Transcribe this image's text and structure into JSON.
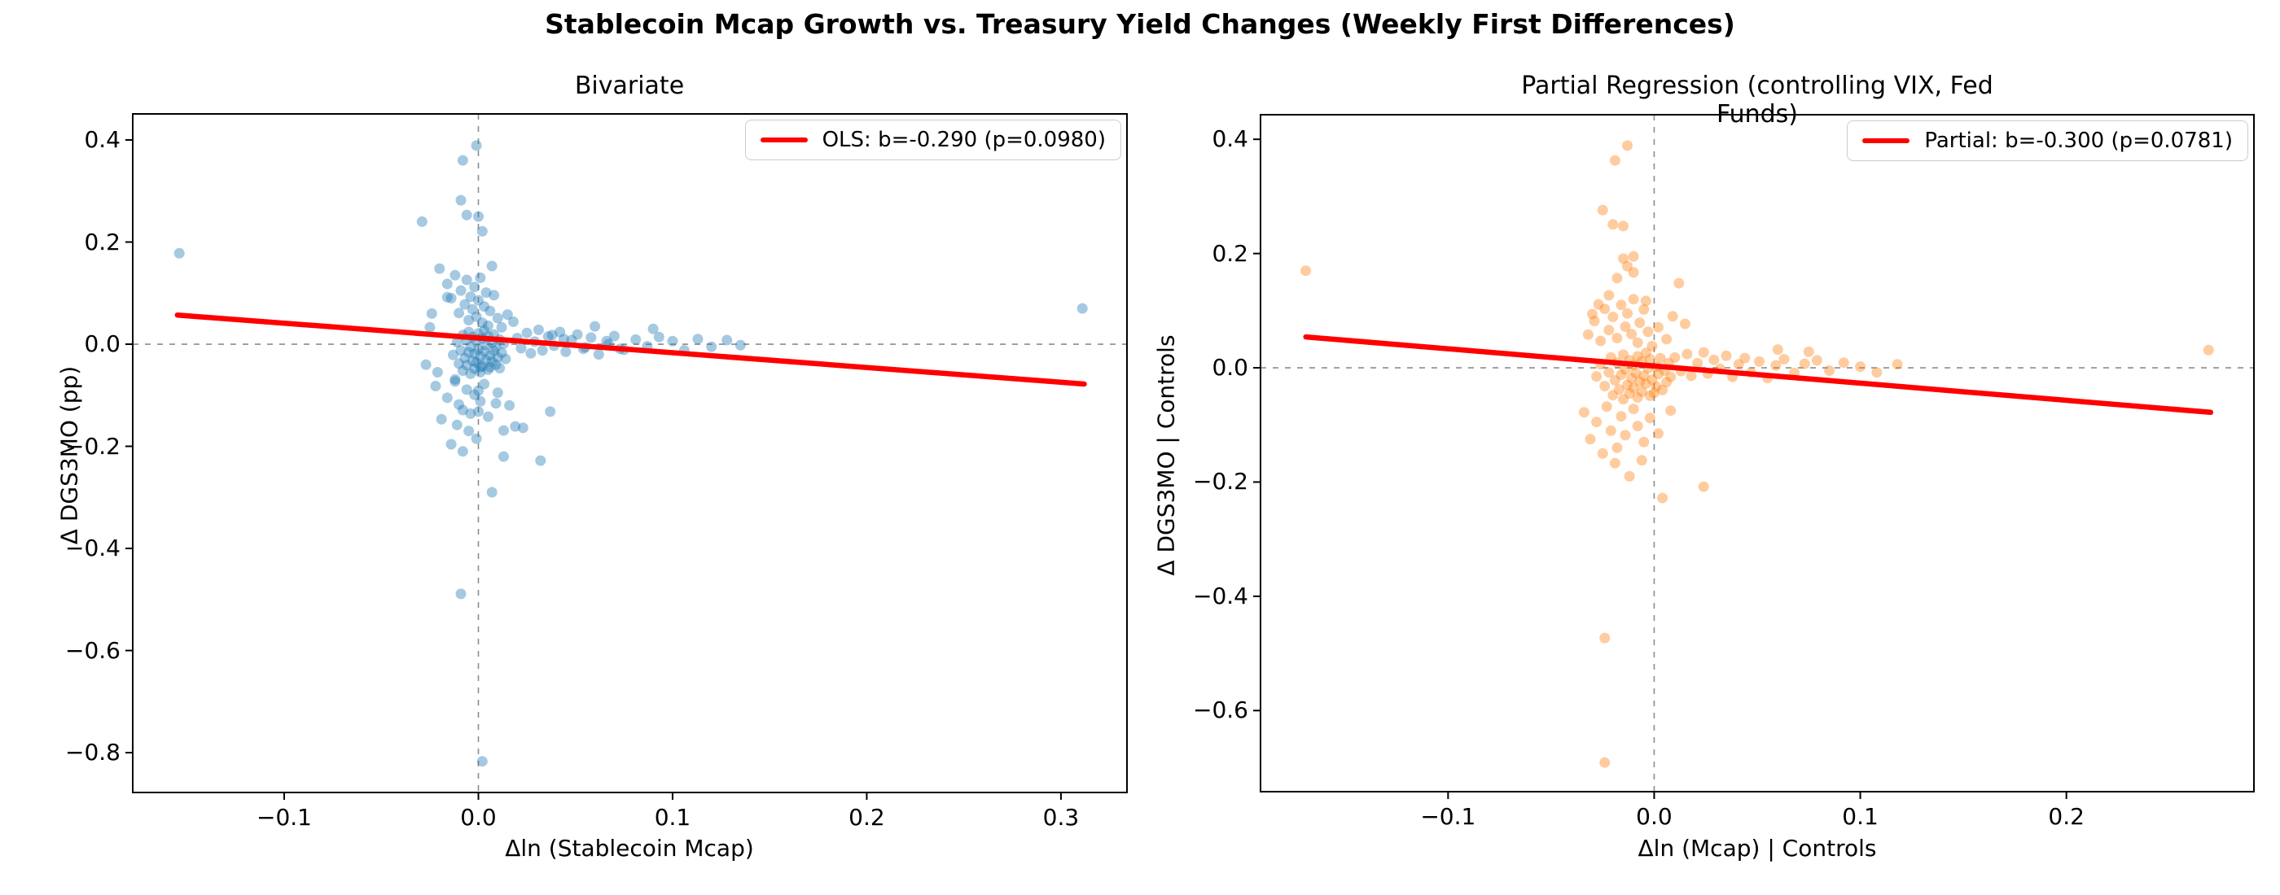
{
  "figure": {
    "suptitle": "Stablecoin Mcap Growth vs. Treasury Yield Changes (Weekly First Differences)",
    "background": "#ffffff",
    "accent_red": "#ff0000",
    "ref_line_color": "#8c8c8c"
  },
  "chart_data": [
    {
      "type": "scatter",
      "title": "Bivariate",
      "xlabel": "Δln (Stablecoin Mcap)",
      "ylabel": "Δ DGS3MO (pp)",
      "xlim": [
        -0.178,
        0.334
      ],
      "ylim": [
        -0.878,
        0.451
      ],
      "xtick_values": [
        -0.1,
        0.0,
        0.1,
        0.2,
        0.3
      ],
      "xtick_labels": [
        "−0.1",
        "0.0",
        "0.1",
        "0.2",
        "0.3"
      ],
      "ytick_values": [
        0.4,
        0.2,
        0.0,
        -0.2,
        -0.4,
        -0.6,
        -0.8
      ],
      "ytick_labels": [
        "0.4",
        "0.2",
        "0.0",
        "−0.2",
        "−0.4",
        "−0.6",
        "−0.8"
      ],
      "point_color": "#1f77b4",
      "point_opacity": 0.4,
      "line_color": "#ff0000",
      "legend_label": "OLS: b=-0.290 (p=0.0980)",
      "legend_position": "upper right",
      "grid": false,
      "ref_h_line": 0.0,
      "ref_v_line": 0.0,
      "regression_line": {
        "x": [
          -0.155,
          0.312
        ],
        "y": [
          0.057,
          -0.078
        ]
      },
      "points": [
        [
          -0.154,
          0.178
        ],
        [
          0.311,
          0.07
        ],
        [
          -0.001,
          0.389
        ],
        [
          -0.008,
          0.36
        ],
        [
          -0.009,
          0.282
        ],
        [
          -0.029,
          0.24
        ],
        [
          -0.006,
          0.253
        ],
        [
          0.0,
          0.25
        ],
        [
          0.002,
          0.221
        ],
        [
          0.007,
          0.153
        ],
        [
          0.002,
          -0.817
        ],
        [
          -0.009,
          -0.489
        ],
        [
          0.007,
          -0.29
        ],
        [
          0.032,
          -0.228
        ],
        [
          0.013,
          -0.22
        ],
        [
          0.013,
          -0.169
        ],
        [
          0.019,
          -0.161
        ],
        [
          0.023,
          -0.164
        ],
        [
          0.037,
          -0.132
        ],
        [
          0.009,
          -0.116
        ],
        [
          -0.008,
          -0.129
        ],
        [
          0.0,
          -0.132
        ],
        [
          -0.012,
          -0.069
        ],
        [
          0.0,
          -0.091
        ],
        [
          0.001,
          -0.045
        ],
        [
          0.038,
          0.018
        ],
        [
          0.044,
          0.01
        ],
        [
          0.055,
          -0.006
        ],
        [
          0.067,
          0.0
        ],
        [
          0.073,
          -0.009
        ],
        [
          -0.016,
          0.092
        ],
        [
          -0.025,
          0.033
        ],
        [
          -0.021,
          -0.055
        ],
        [
          -0.024,
          0.06
        ],
        [
          -0.027,
          -0.04
        ],
        [
          -0.013,
          -0.021
        ],
        [
          -0.011,
          0.004
        ],
        [
          -0.01,
          -0.038
        ],
        [
          -0.009,
          -0.012
        ],
        [
          -0.008,
          0.018
        ],
        [
          -0.008,
          -0.052
        ],
        [
          -0.007,
          -0.027
        ],
        [
          -0.006,
          0.008
        ],
        [
          -0.006,
          -0.041
        ],
        [
          -0.005,
          -0.016
        ],
        [
          -0.005,
          0.024
        ],
        [
          -0.004,
          -0.058
        ],
        [
          -0.004,
          -0.005
        ],
        [
          -0.003,
          -0.033
        ],
        [
          -0.003,
          0.014
        ],
        [
          -0.002,
          -0.048
        ],
        [
          -0.002,
          -0.019
        ],
        [
          -0.001,
          0.006
        ],
        [
          -0.001,
          -0.036
        ],
        [
          0.0,
          -0.01
        ],
        [
          0.0,
          0.021
        ],
        [
          0.001,
          -0.055
        ],
        [
          0.001,
          -0.024
        ],
        [
          0.002,
          0.011
        ],
        [
          0.002,
          -0.043
        ],
        [
          0.003,
          -0.014
        ],
        [
          0.003,
          0.027
        ],
        [
          0.004,
          -0.031
        ],
        [
          0.004,
          -0.002
        ],
        [
          0.005,
          -0.05
        ],
        [
          0.005,
          0.016
        ],
        [
          0.006,
          -0.022
        ],
        [
          0.006,
          -0.045
        ],
        [
          0.007,
          0.003
        ],
        [
          0.007,
          -0.034
        ],
        [
          0.008,
          -0.013
        ],
        [
          0.008,
          0.019
        ],
        [
          0.009,
          -0.04
        ],
        [
          0.009,
          -0.006
        ],
        [
          0.01,
          -0.026
        ],
        [
          0.011,
          0.009
        ],
        [
          0.011,
          -0.047
        ],
        [
          0.012,
          -0.017
        ],
        [
          0.013,
          0.001
        ],
        [
          0.014,
          -0.029
        ],
        [
          -0.02,
          0.148
        ],
        [
          -0.016,
          0.118
        ],
        [
          -0.014,
          0.09
        ],
        [
          -0.012,
          0.135
        ],
        [
          -0.01,
          0.061
        ],
        [
          -0.009,
          0.105
        ],
        [
          -0.007,
          0.078
        ],
        [
          -0.006,
          0.126
        ],
        [
          -0.005,
          0.047
        ],
        [
          -0.004,
          0.093
        ],
        [
          -0.003,
          0.068
        ],
        [
          -0.002,
          0.112
        ],
        [
          -0.001,
          0.054
        ],
        [
          0.0,
          0.086
        ],
        [
          0.001,
          0.13
        ],
        [
          0.002,
          0.042
        ],
        [
          0.003,
          0.074
        ],
        [
          0.004,
          0.101
        ],
        [
          0.005,
          0.036
        ],
        [
          0.006,
          0.065
        ],
        [
          0.008,
          0.096
        ],
        [
          0.01,
          0.051
        ],
        [
          0.012,
          0.033
        ],
        [
          0.015,
          0.058
        ],
        [
          0.018,
          0.044
        ],
        [
          -0.022,
          -0.082
        ],
        [
          -0.019,
          -0.147
        ],
        [
          -0.016,
          -0.105
        ],
        [
          -0.014,
          -0.196
        ],
        [
          -0.012,
          -0.073
        ],
        [
          -0.011,
          -0.158
        ],
        [
          -0.01,
          -0.118
        ],
        [
          -0.008,
          -0.21
        ],
        [
          -0.006,
          -0.089
        ],
        [
          -0.005,
          -0.17
        ],
        [
          -0.004,
          -0.136
        ],
        [
          -0.002,
          -0.099
        ],
        [
          -0.001,
          -0.185
        ],
        [
          0.001,
          -0.112
        ],
        [
          0.003,
          -0.078
        ],
        [
          0.005,
          -0.142
        ],
        [
          0.01,
          -0.095
        ],
        [
          0.016,
          -0.12
        ],
        [
          0.02,
          0.012
        ],
        [
          0.022,
          -0.008
        ],
        [
          0.025,
          0.022
        ],
        [
          0.027,
          -0.018
        ],
        [
          0.029,
          0.005
        ],
        [
          0.031,
          0.028
        ],
        [
          0.033,
          -0.012
        ],
        [
          0.036,
          0.015
        ],
        [
          0.039,
          -0.003
        ],
        [
          0.042,
          0.024
        ],
        [
          0.045,
          -0.015
        ],
        [
          0.048,
          0.008
        ],
        [
          0.051,
          0.019
        ],
        [
          0.054,
          -0.009
        ],
        [
          0.058,
          0.013
        ],
        [
          0.062,
          -0.02
        ],
        [
          0.066,
          0.006
        ],
        [
          0.07,
          0.016
        ],
        [
          0.075,
          -0.011
        ],
        [
          0.081,
          0.009
        ],
        [
          0.087,
          -0.004
        ],
        [
          0.093,
          0.014
        ],
        [
          0.1,
          0.006
        ],
        [
          0.106,
          -0.012
        ],
        [
          0.113,
          0.01
        ],
        [
          0.12,
          -0.005
        ],
        [
          0.128,
          0.008
        ],
        [
          0.135,
          -0.002
        ],
        [
          0.09,
          0.03
        ],
        [
          0.06,
          0.035
        ]
      ]
    },
    {
      "type": "scatter",
      "title": "Partial Regression (controlling VIX, Fed Funds)",
      "xlabel": "Δln (Mcap) | Controls",
      "ylabel": "Δ DGS3MO | Controls",
      "xlim": [
        -0.191,
        0.291
      ],
      "ylim": [
        -0.742,
        0.443
      ],
      "xtick_values": [
        -0.1,
        0.0,
        0.1,
        0.2
      ],
      "xtick_labels": [
        "−0.1",
        "0.0",
        "0.1",
        "0.2"
      ],
      "ytick_values": [
        0.4,
        0.2,
        0.0,
        -0.2,
        -0.4,
        -0.6
      ],
      "ytick_labels": [
        "0.4",
        "0.2",
        "0.0",
        "−0.2",
        "−0.4",
        "−0.6"
      ],
      "point_color": "#ff7f0e",
      "point_opacity": 0.4,
      "line_color": "#ff0000",
      "legend_label": "Partial: b=-0.300 (p=0.0781)",
      "legend_position": "upper right",
      "grid": false,
      "ref_h_line": 0.0,
      "ref_v_line": 0.0,
      "regression_line": {
        "x": [
          -0.169,
          0.27
        ],
        "y": [
          0.054,
          -0.078
        ]
      },
      "points": [
        [
          -0.169,
          0.17
        ],
        [
          0.269,
          0.031
        ],
        [
          -0.013,
          0.389
        ],
        [
          -0.019,
          0.363
        ],
        [
          -0.025,
          0.276
        ],
        [
          -0.02,
          0.251
        ],
        [
          -0.015,
          0.248
        ],
        [
          -0.015,
          0.191
        ],
        [
          -0.01,
          0.195
        ],
        [
          -0.013,
          0.178
        ],
        [
          -0.01,
          0.167
        ],
        [
          -0.018,
          0.157
        ],
        [
          0.012,
          0.148
        ],
        [
          -0.022,
          0.127
        ],
        [
          -0.004,
          0.117
        ],
        [
          -0.027,
          0.111
        ],
        [
          -0.03,
          0.094
        ],
        [
          0.015,
          0.077
        ],
        [
          -0.024,
          -0.473
        ],
        [
          -0.024,
          -0.691
        ],
        [
          0.004,
          -0.228
        ],
        [
          0.024,
          -0.208
        ],
        [
          -0.019,
          -0.167
        ],
        [
          -0.006,
          -0.162
        ],
        [
          -0.028,
          -0.015
        ],
        [
          -0.026,
          0.006
        ],
        [
          -0.024,
          -0.032
        ],
        [
          -0.022,
          -0.008
        ],
        [
          -0.021,
          0.018
        ],
        [
          -0.02,
          -0.048
        ],
        [
          -0.019,
          -0.022
        ],
        [
          -0.018,
          0.009
        ],
        [
          -0.017,
          -0.038
        ],
        [
          -0.016,
          -0.012
        ],
        [
          -0.015,
          0.023
        ],
        [
          -0.015,
          -0.055
        ],
        [
          -0.014,
          -0.003
        ],
        [
          -0.013,
          -0.03
        ],
        [
          -0.012,
          0.013
        ],
        [
          -0.012,
          -0.045
        ],
        [
          -0.011,
          -0.018
        ],
        [
          -0.01,
          0.005
        ],
        [
          -0.01,
          -0.035
        ],
        [
          -0.009,
          -0.009
        ],
        [
          -0.008,
          0.02
        ],
        [
          -0.008,
          -0.052
        ],
        [
          -0.007,
          -0.024
        ],
        [
          -0.006,
          0.011
        ],
        [
          -0.006,
          -0.042
        ],
        [
          -0.005,
          -0.014
        ],
        [
          -0.004,
          0.026
        ],
        [
          -0.004,
          -0.028
        ],
        [
          -0.003,
          -0.001
        ],
        [
          -0.002,
          -0.049
        ],
        [
          -0.002,
          0.015
        ],
        [
          -0.001,
          -0.021
        ],
        [
          0.0,
          -0.044
        ],
        [
          0.001,
          0.002
        ],
        [
          0.001,
          -0.033
        ],
        [
          0.002,
          -0.011
        ],
        [
          0.003,
          0.017
        ],
        [
          0.004,
          -0.039
        ],
        [
          0.005,
          -0.005
        ],
        [
          0.006,
          -0.025
        ],
        [
          0.007,
          0.008
        ],
        [
          0.008,
          -0.016
        ],
        [
          -0.032,
          0.058
        ],
        [
          -0.029,
          0.082
        ],
        [
          -0.026,
          0.047
        ],
        [
          -0.024,
          0.103
        ],
        [
          -0.022,
          0.066
        ],
        [
          -0.02,
          0.089
        ],
        [
          -0.018,
          0.052
        ],
        [
          -0.016,
          0.11
        ],
        [
          -0.014,
          0.072
        ],
        [
          -0.013,
          0.095
        ],
        [
          -0.011,
          0.059
        ],
        [
          -0.01,
          0.12
        ],
        [
          -0.008,
          0.044
        ],
        [
          -0.007,
          0.079
        ],
        [
          -0.005,
          0.102
        ],
        [
          -0.003,
          0.063
        ],
        [
          -0.001,
          0.038
        ],
        [
          0.002,
          0.071
        ],
        [
          0.006,
          0.05
        ],
        [
          0.009,
          0.09
        ],
        [
          -0.034,
          -0.078
        ],
        [
          -0.031,
          -0.125
        ],
        [
          -0.028,
          -0.095
        ],
        [
          -0.025,
          -0.15
        ],
        [
          -0.023,
          -0.068
        ],
        [
          -0.021,
          -0.11
        ],
        [
          -0.018,
          -0.14
        ],
        [
          -0.016,
          -0.085
        ],
        [
          -0.014,
          -0.118
        ],
        [
          -0.012,
          -0.19
        ],
        [
          -0.01,
          -0.072
        ],
        [
          -0.008,
          -0.102
        ],
        [
          -0.005,
          -0.13
        ],
        [
          -0.002,
          -0.088
        ],
        [
          0.002,
          -0.115
        ],
        [
          0.008,
          -0.075
        ],
        [
          0.01,
          0.018
        ],
        [
          0.013,
          -0.006
        ],
        [
          0.016,
          0.024
        ],
        [
          0.018,
          -0.014
        ],
        [
          0.021,
          0.008
        ],
        [
          0.024,
          0.027
        ],
        [
          0.026,
          -0.01
        ],
        [
          0.029,
          0.014
        ],
        [
          0.032,
          -0.002
        ],
        [
          0.035,
          0.021
        ],
        [
          0.038,
          -0.016
        ],
        [
          0.041,
          0.006
        ],
        [
          0.044,
          0.017
        ],
        [
          0.047,
          -0.008
        ],
        [
          0.051,
          0.011
        ],
        [
          0.055,
          -0.018
        ],
        [
          0.059,
          0.004
        ],
        [
          0.063,
          0.015
        ],
        [
          0.068,
          -0.009
        ],
        [
          0.073,
          0.007
        ],
        [
          0.079,
          0.013
        ],
        [
          0.085,
          -0.005
        ],
        [
          0.092,
          0.009
        ],
        [
          0.1,
          0.002
        ],
        [
          0.108,
          -0.008
        ],
        [
          0.118,
          0.006
        ],
        [
          0.06,
          0.032
        ],
        [
          0.075,
          0.028
        ]
      ]
    }
  ]
}
